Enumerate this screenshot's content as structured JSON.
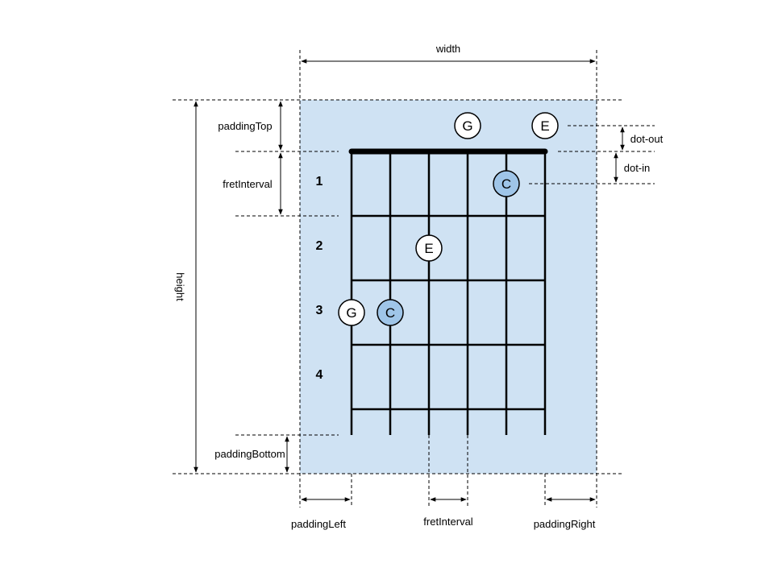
{
  "labels": {
    "width": "width",
    "height": "height",
    "padding_top": "paddingTop",
    "fret_interval_side": "fretInterval",
    "padding_bottom": "paddingBottom",
    "padding_left": "paddingLeft",
    "fret_interval_bottom": "fretInterval",
    "padding_right": "paddingRight",
    "dot_out": "dot-out",
    "dot_in": "dot-in"
  },
  "fret_numbers": [
    "1",
    "2",
    "3",
    "4"
  ],
  "dots": {
    "open_g": "G",
    "open_e": "E",
    "fret1_c": "C",
    "fret2_e": "E",
    "fret3_g": "G",
    "fret3_c": "C"
  },
  "colors": {
    "board_background": "#cfe2f3",
    "dot_filled": "#9fc5e8",
    "dot_open": "#ffffff",
    "line": "#000000"
  }
}
